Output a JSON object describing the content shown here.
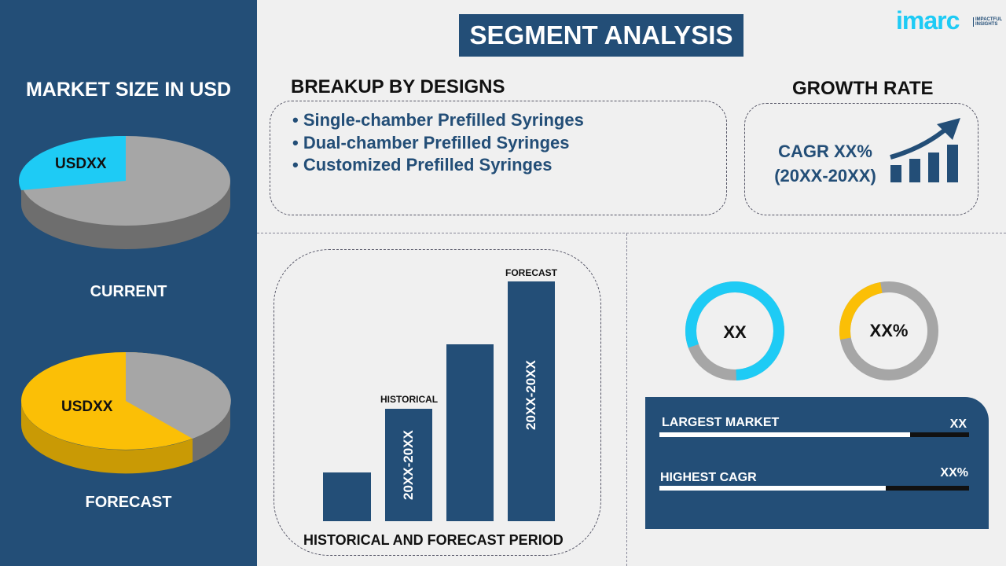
{
  "title": "SEGMENT ANALYSIS",
  "logo": {
    "brand": "imarc",
    "tagline": "IMPACTFUL INSIGHTS"
  },
  "left": {
    "heading": "MARKET SIZE IN USD",
    "current": {
      "label": "CURRENT",
      "value": "USDXX",
      "share": 0.2
    },
    "forecast": {
      "label": "FORECAST",
      "value": "USDXX",
      "share": 0.62
    }
  },
  "breakup": {
    "heading": "BREAKUP BY DESIGNS",
    "items": [
      "• Single-chamber Prefilled Syringes",
      "• Dual-chamber Prefilled Syringes",
      "• Customized Prefilled Syringes"
    ]
  },
  "growth": {
    "heading": "GROWTH RATE",
    "cagr": "CAGR XX%",
    "period": "(20XX-20XX)",
    "icon": "growth-chart-icon"
  },
  "period_chart": {
    "caption": "HISTORICAL AND FORECAST PERIOD",
    "historical_label": "HISTORICAL",
    "forecast_label": "FORECAST",
    "historical_range": "20XX-20XX",
    "forecast_range": "20XX-20XX"
  },
  "donuts": [
    {
      "value": "XX",
      "color": "#1ecbf5",
      "share": 0.8
    },
    {
      "value": "XX%",
      "color": "#fbbf06",
      "share": 0.25
    }
  ],
  "stats": [
    {
      "label": "LARGEST MARKET",
      "value": "XX",
      "fill": 0.81
    },
    {
      "label": "HIGHEST CAGR",
      "value": "XX%",
      "fill": 0.73
    }
  ],
  "colors": {
    "navy": "#234e77",
    "cyan": "#1ecbf5",
    "yellow": "#fbbf06",
    "gray": "#a6a6a6"
  }
}
